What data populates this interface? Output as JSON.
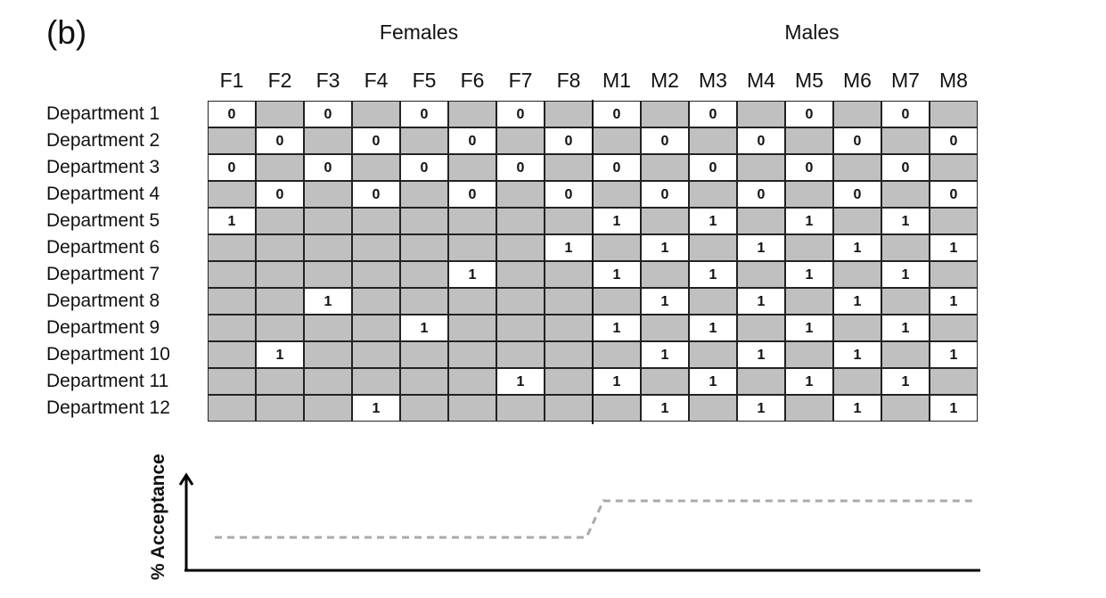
{
  "panel_label": "(b)",
  "group_titles": {
    "females": "Females",
    "males": "Males"
  },
  "columns": [
    "F1",
    "F2",
    "F3",
    "F4",
    "F5",
    "F6",
    "F7",
    "F8",
    "M1",
    "M2",
    "M3",
    "M4",
    "M5",
    "M6",
    "M7",
    "M8"
  ],
  "rows": [
    {
      "label": "Department 1",
      "cells": [
        0,
        null,
        0,
        null,
        0,
        null,
        0,
        null,
        0,
        null,
        0,
        null,
        0,
        null,
        0,
        null
      ]
    },
    {
      "label": "Department 2",
      "cells": [
        null,
        0,
        null,
        0,
        null,
        0,
        null,
        0,
        null,
        0,
        null,
        0,
        null,
        0,
        null,
        0
      ]
    },
    {
      "label": "Department 3",
      "cells": [
        0,
        null,
        0,
        null,
        0,
        null,
        0,
        null,
        0,
        null,
        0,
        null,
        0,
        null,
        0,
        null
      ]
    },
    {
      "label": "Department 4",
      "cells": [
        null,
        0,
        null,
        0,
        null,
        0,
        null,
        0,
        null,
        0,
        null,
        0,
        null,
        0,
        null,
        0
      ]
    },
    {
      "label": "Department 5",
      "cells": [
        1,
        null,
        null,
        null,
        null,
        null,
        null,
        null,
        1,
        null,
        1,
        null,
        1,
        null,
        1,
        null
      ]
    },
    {
      "label": "Department 6",
      "cells": [
        null,
        null,
        null,
        null,
        null,
        null,
        null,
        1,
        null,
        1,
        null,
        1,
        null,
        1,
        null,
        1
      ]
    },
    {
      "label": "Department 7",
      "cells": [
        null,
        null,
        null,
        null,
        null,
        1,
        null,
        null,
        1,
        null,
        1,
        null,
        1,
        null,
        1,
        null
      ]
    },
    {
      "label": "Department 8",
      "cells": [
        null,
        null,
        1,
        null,
        null,
        null,
        null,
        null,
        null,
        1,
        null,
        1,
        null,
        1,
        null,
        1
      ]
    },
    {
      "label": "Department 9",
      "cells": [
        null,
        null,
        null,
        null,
        1,
        null,
        null,
        null,
        1,
        null,
        1,
        null,
        1,
        null,
        1,
        null
      ]
    },
    {
      "label": "Department 10",
      "cells": [
        null,
        1,
        null,
        null,
        null,
        null,
        null,
        null,
        null,
        1,
        null,
        1,
        null,
        1,
        null,
        1
      ]
    },
    {
      "label": "Department 11",
      "cells": [
        null,
        null,
        null,
        null,
        null,
        null,
        1,
        null,
        1,
        null,
        1,
        null,
        1,
        null,
        1,
        null
      ]
    },
    {
      "label": "Department 12",
      "cells": [
        null,
        null,
        null,
        1,
        null,
        null,
        null,
        null,
        null,
        1,
        null,
        1,
        null,
        1,
        null,
        1
      ]
    }
  ],
  "colors": {
    "empty_cell": "#c0c0c0",
    "filled_cell": "#ffffff",
    "grid_line": "#222222",
    "acceptance_line": "#aaaaaa"
  },
  "acceptance_plot": {
    "ylabel": "% Acceptance",
    "levels": {
      "females": "low",
      "males": "high"
    }
  }
}
